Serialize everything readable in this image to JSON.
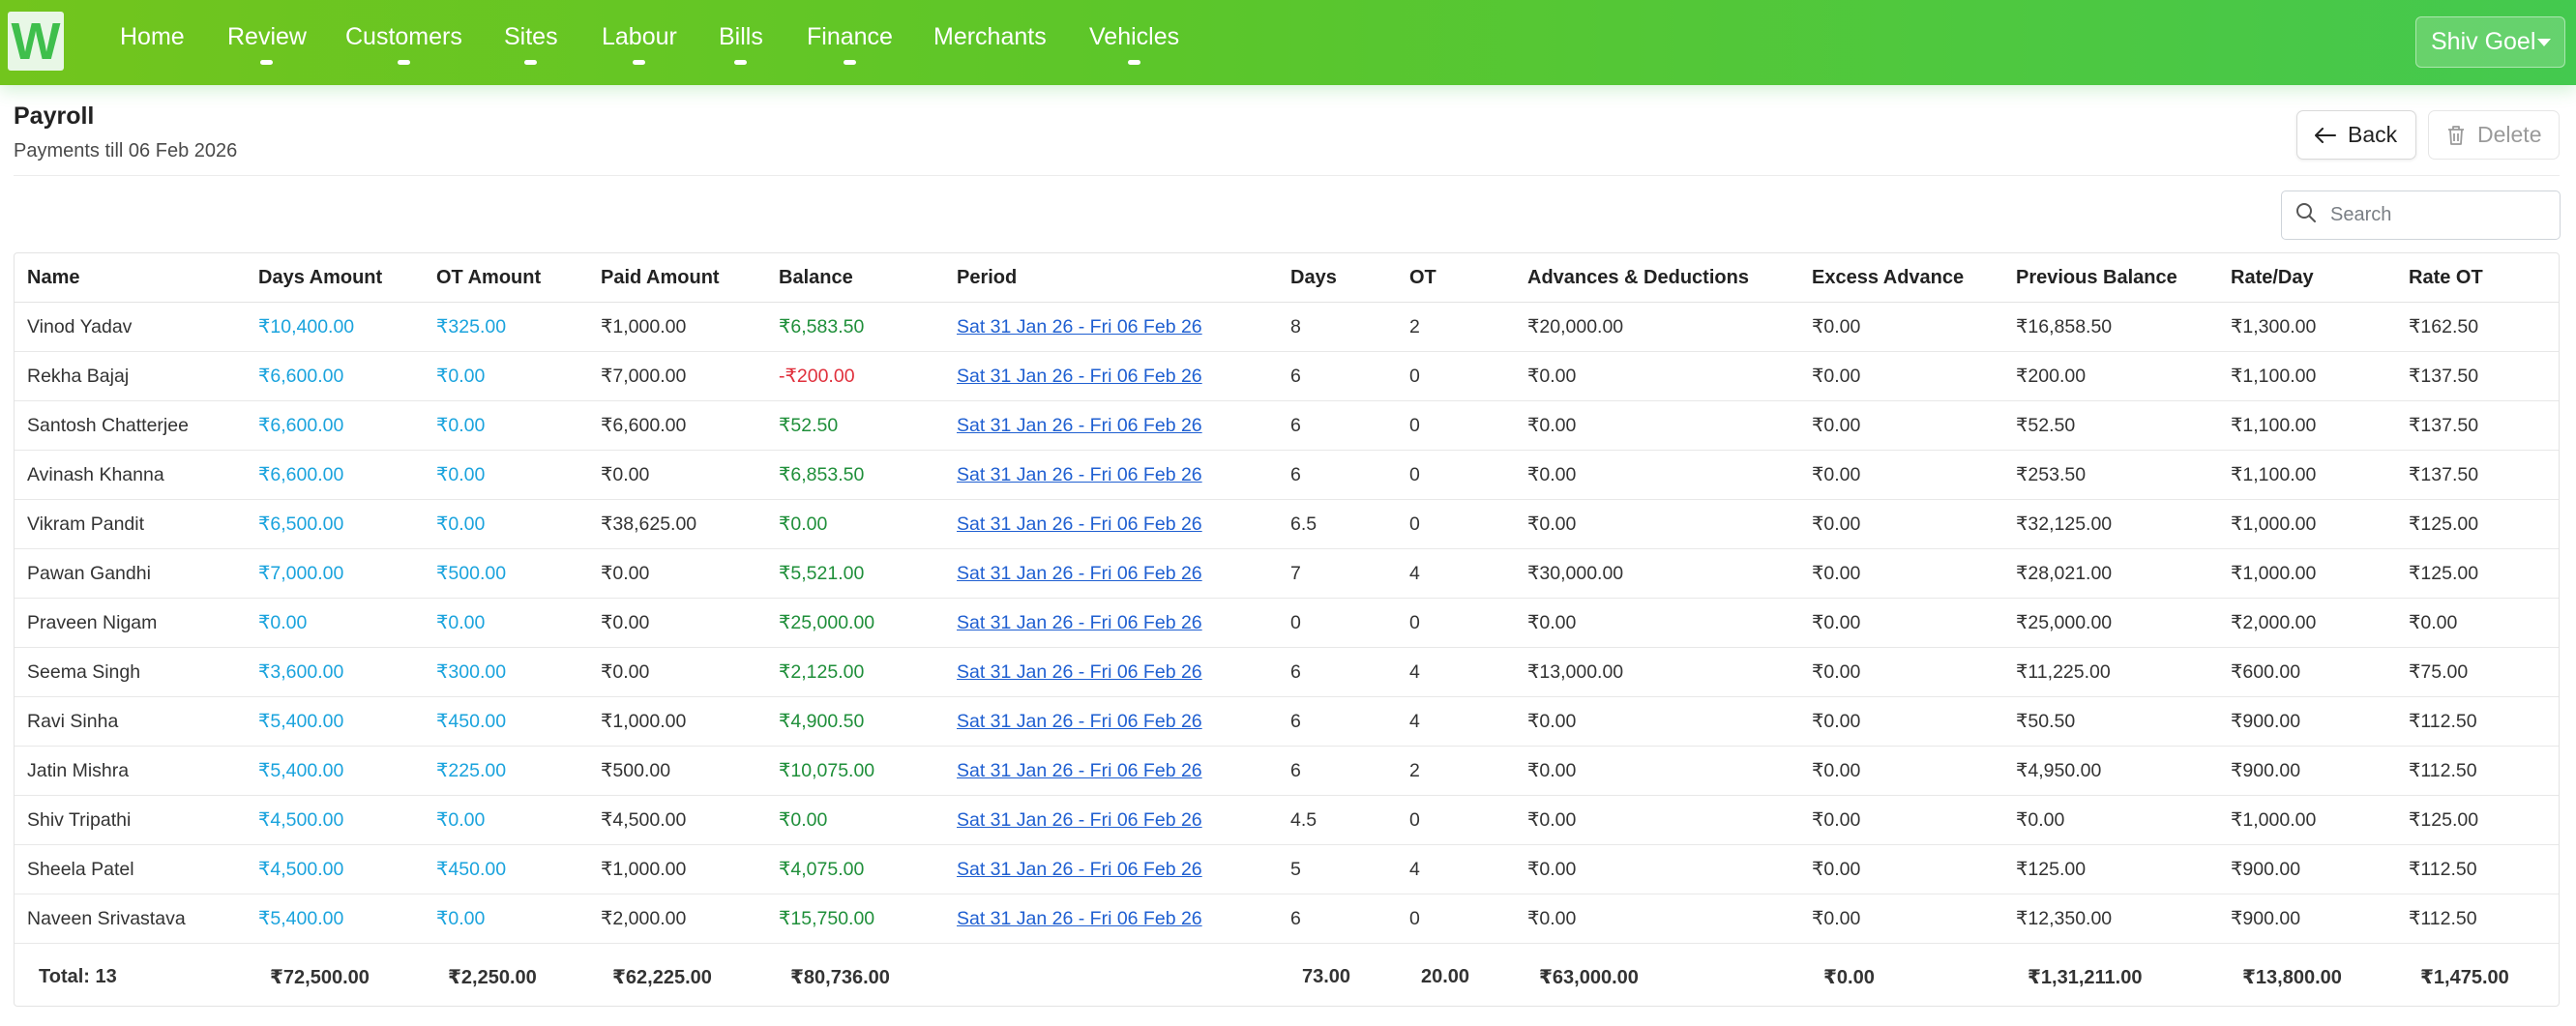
{
  "navbar": {
    "logo_letter": "W",
    "items": [
      {
        "label": "Home",
        "has_caret": false
      },
      {
        "label": "Review",
        "has_caret": true
      },
      {
        "label": "Customers",
        "has_caret": true
      },
      {
        "label": "Sites",
        "has_caret": true
      },
      {
        "label": "Labour",
        "has_caret": true
      },
      {
        "label": "Bills",
        "has_caret": true
      },
      {
        "label": "Finance",
        "has_caret": true
      },
      {
        "label": "Merchants",
        "has_caret": false
      },
      {
        "label": "Vehicles",
        "has_caret": true
      }
    ],
    "user_name": "Shiv Goel"
  },
  "header": {
    "title": "Payroll",
    "subtitle": "Payments till 06 Feb 2026",
    "back_label": "Back",
    "delete_label": "Delete"
  },
  "search": {
    "placeholder": "Search",
    "value": ""
  },
  "table": {
    "columns": [
      "Name",
      "Days Amount",
      "OT Amount",
      "Paid Amount",
      "Balance",
      "Period",
      "Days",
      "OT",
      "Advances & Deductions",
      "Excess Advance",
      "Previous Balance",
      "Rate/Day",
      "Rate OT"
    ],
    "rows": [
      [
        "Vinod Yadav",
        "₹10,400.00",
        "₹325.00",
        "₹1,000.00",
        "₹6,583.50",
        "Sat 31 Jan 26 - Fri 06 Feb 26",
        "8",
        "2",
        "₹20,000.00",
        "₹0.00",
        "₹16,858.50",
        "₹1,300.00",
        "₹162.50"
      ],
      [
        "Rekha Bajaj",
        "₹6,600.00",
        "₹0.00",
        "₹7,000.00",
        "-₹200.00",
        "Sat 31 Jan 26 - Fri 06 Feb 26",
        "6",
        "0",
        "₹0.00",
        "₹0.00",
        "₹200.00",
        "₹1,100.00",
        "₹137.50"
      ],
      [
        "Santosh Chatterjee",
        "₹6,600.00",
        "₹0.00",
        "₹6,600.00",
        "₹52.50",
        "Sat 31 Jan 26 - Fri 06 Feb 26",
        "6",
        "0",
        "₹0.00",
        "₹0.00",
        "₹52.50",
        "₹1,100.00",
        "₹137.50"
      ],
      [
        "Avinash Khanna",
        "₹6,600.00",
        "₹0.00",
        "₹0.00",
        "₹6,853.50",
        "Sat 31 Jan 26 - Fri 06 Feb 26",
        "6",
        "0",
        "₹0.00",
        "₹0.00",
        "₹253.50",
        "₹1,100.00",
        "₹137.50"
      ],
      [
        "Vikram Pandit",
        "₹6,500.00",
        "₹0.00",
        "₹38,625.00",
        "₹0.00",
        "Sat 31 Jan 26 - Fri 06 Feb 26",
        "6.5",
        "0",
        "₹0.00",
        "₹0.00",
        "₹32,125.00",
        "₹1,000.00",
        "₹125.00"
      ],
      [
        "Pawan Gandhi",
        "₹7,000.00",
        "₹500.00",
        "₹0.00",
        "₹5,521.00",
        "Sat 31 Jan 26 - Fri 06 Feb 26",
        "7",
        "4",
        "₹30,000.00",
        "₹0.00",
        "₹28,021.00",
        "₹1,000.00",
        "₹125.00"
      ],
      [
        "Praveen Nigam",
        "₹0.00",
        "₹0.00",
        "₹0.00",
        "₹25,000.00",
        "Sat 31 Jan 26 - Fri 06 Feb 26",
        "0",
        "0",
        "₹0.00",
        "₹0.00",
        "₹25,000.00",
        "₹2,000.00",
        "₹0.00"
      ],
      [
        "Seema Singh",
        "₹3,600.00",
        "₹300.00",
        "₹0.00",
        "₹2,125.00",
        "Sat 31 Jan 26 - Fri 06 Feb 26",
        "6",
        "4",
        "₹13,000.00",
        "₹0.00",
        "₹11,225.00",
        "₹600.00",
        "₹75.00"
      ],
      [
        "Ravi Sinha",
        "₹5,400.00",
        "₹450.00",
        "₹1,000.00",
        "₹4,900.50",
        "Sat 31 Jan 26 - Fri 06 Feb 26",
        "6",
        "4",
        "₹0.00",
        "₹0.00",
        "₹50.50",
        "₹900.00",
        "₹112.50"
      ],
      [
        "Jatin Mishra",
        "₹5,400.00",
        "₹225.00",
        "₹500.00",
        "₹10,075.00",
        "Sat 31 Jan 26 - Fri 06 Feb 26",
        "6",
        "2",
        "₹0.00",
        "₹0.00",
        "₹4,950.00",
        "₹900.00",
        "₹112.50"
      ],
      [
        "Shiv Tripathi",
        "₹4,500.00",
        "₹0.00",
        "₹4,500.00",
        "₹0.00",
        "Sat 31 Jan 26 - Fri 06 Feb 26",
        "4.5",
        "0",
        "₹0.00",
        "₹0.00",
        "₹0.00",
        "₹1,000.00",
        "₹125.00"
      ],
      [
        "Sheela Patel",
        "₹4,500.00",
        "₹450.00",
        "₹1,000.00",
        "₹4,075.00",
        "Sat 31 Jan 26 - Fri 06 Feb 26",
        "5",
        "4",
        "₹0.00",
        "₹0.00",
        "₹125.00",
        "₹900.00",
        "₹112.50"
      ],
      [
        "Naveen Srivastava",
        "₹5,400.00",
        "₹0.00",
        "₹2,000.00",
        "₹15,750.00",
        "Sat 31 Jan 26 - Fri 06 Feb 26",
        "6",
        "0",
        "₹0.00",
        "₹0.00",
        "₹12,350.00",
        "₹900.00",
        "₹112.50"
      ]
    ],
    "totals": [
      "Total: 13",
      "₹72,500.00",
      "₹2,250.00",
      "₹62,225.00",
      "₹80,736.00",
      "",
      "73.00",
      "20.00",
      "₹63,000.00",
      "₹0.00",
      "₹1,31,211.00",
      "₹13,800.00",
      "₹1,475.00"
    ]
  },
  "colors": {
    "nav_gradient_start": "#72c51d",
    "nav_gradient_end": "#44c94f",
    "amount_blue": "#1aa3dd",
    "balance_green": "#1f8f3a",
    "balance_negative_red": "#e0303c",
    "period_link": "#1f5fd1"
  },
  "icons": {
    "back": "arrow-left-icon",
    "delete": "trash-icon",
    "search": "search-icon",
    "user_menu": "caret-down-icon"
  }
}
